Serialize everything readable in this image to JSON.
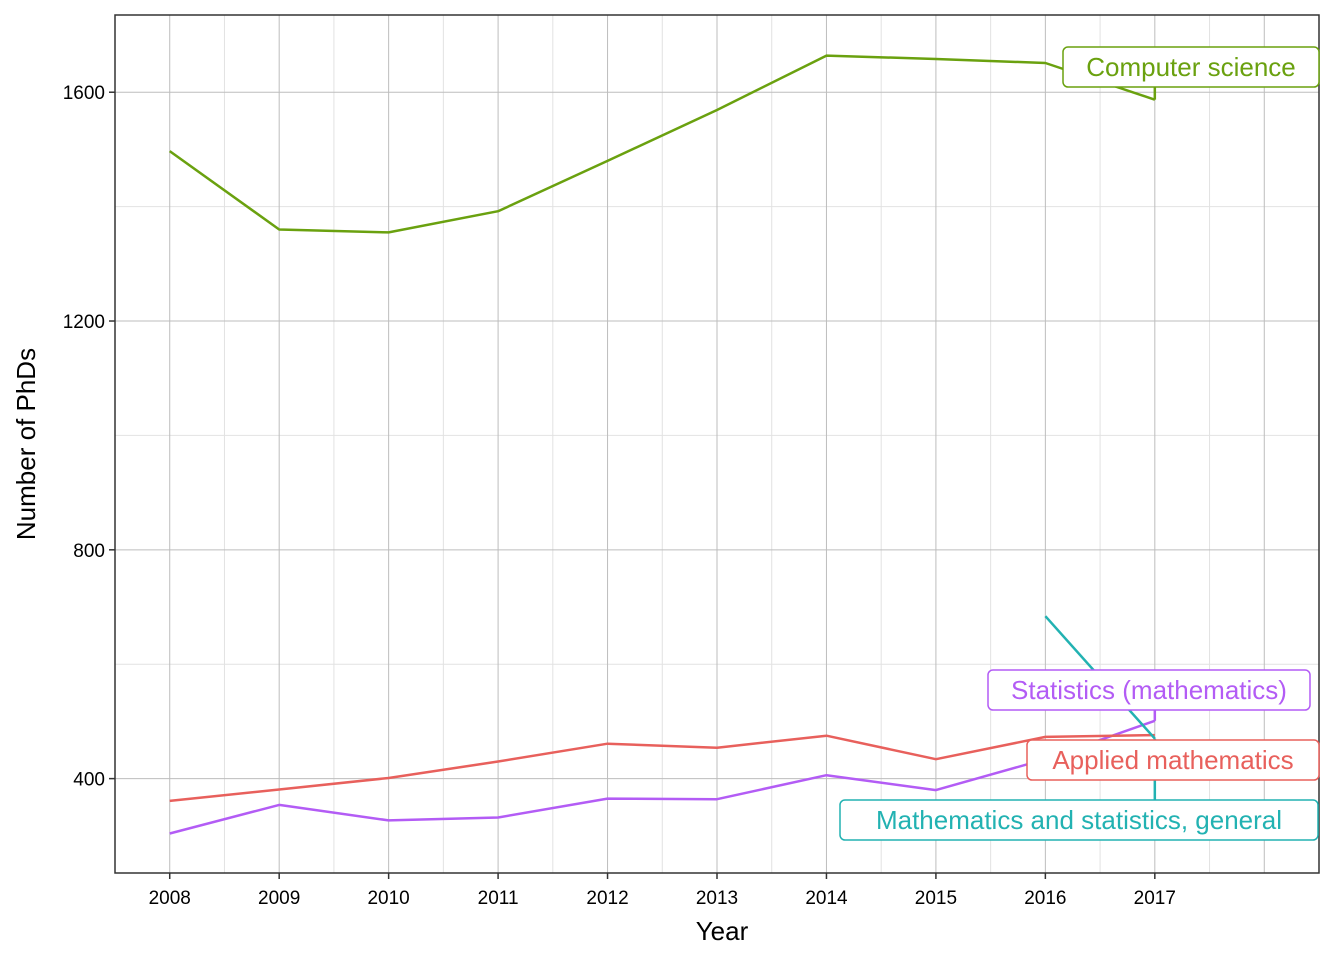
{
  "chart_data": {
    "type": "line",
    "title": "",
    "xlabel": "Year",
    "ylabel": "Number of PhDs",
    "xlim": [
      2007.5,
      2018.5
    ],
    "ylim": [
      235,
      1735
    ],
    "x_ticks": [
      2008,
      2009,
      2010,
      2011,
      2012,
      2013,
      2014,
      2015,
      2016,
      2017
    ],
    "y_ticks": [
      400,
      800,
      1200,
      1600
    ],
    "y_minor_ticks": [
      600,
      1000,
      1400
    ],
    "grid": true,
    "legend": "none (direct labels at line ends)",
    "x": [
      2008,
      2009,
      2010,
      2011,
      2012,
      2013,
      2014,
      2015,
      2016,
      2017
    ],
    "series": [
      {
        "name": "Computer science",
        "color": "#6aa10f",
        "values": [
          1497,
          1360,
          1355,
          1392,
          1480,
          1569,
          1664,
          1658,
          1651,
          1587
        ]
      },
      {
        "name": "Statistics (mathematics)",
        "color": "#b35cf5",
        "values": [
          304,
          354,
          327,
          332,
          365,
          364,
          406,
          380,
          434,
          501
        ]
      },
      {
        "name": "Applied mathematics",
        "color": "#e8605c",
        "values": [
          361,
          381,
          401,
          430,
          461,
          454,
          475,
          434,
          473,
          476
        ]
      },
      {
        "name": "Mathematics and statistics, general",
        "color": "#22b2b2",
        "values": [
          null,
          null,
          null,
          null,
          null,
          null,
          null,
          null,
          684,
          470
        ]
      }
    ]
  }
}
